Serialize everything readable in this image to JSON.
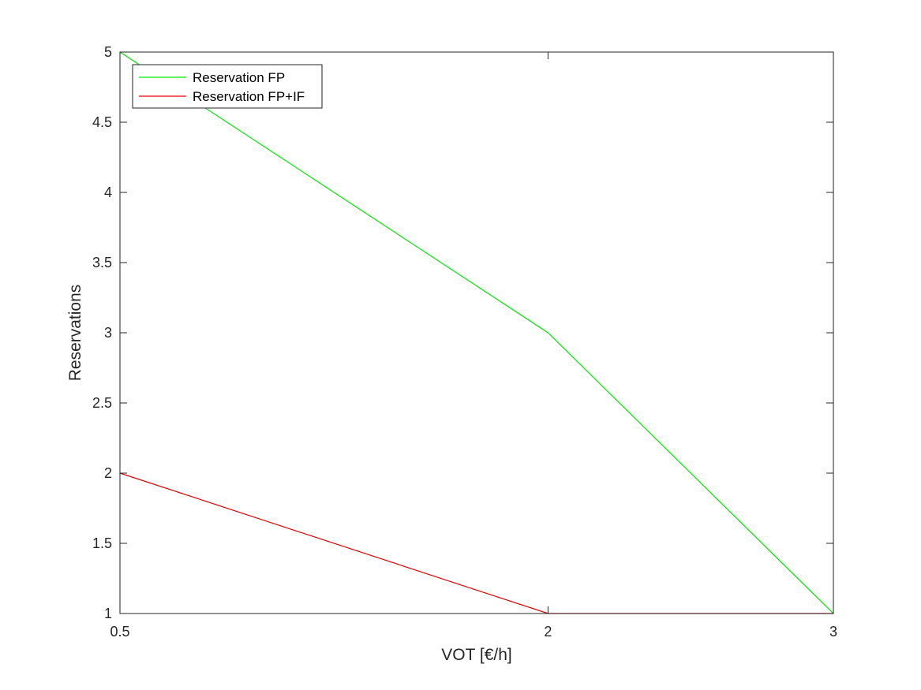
{
  "chart_data": {
    "type": "line",
    "title": "",
    "xlabel": "VOT [€/h]",
    "ylabel": "Reservations",
    "xlim": [
      0.5,
      3
    ],
    "ylim": [
      1,
      5
    ],
    "x_ticks": [
      0.5,
      2,
      3
    ],
    "x_tick_labels": [
      "0.5",
      "2",
      "3"
    ],
    "y_ticks": [
      1,
      1.5,
      2,
      2.5,
      3,
      3.5,
      4,
      4.5,
      5
    ],
    "y_tick_labels": [
      "1",
      "1.5",
      "2",
      "2.5",
      "3",
      "3.5",
      "4",
      "4.5",
      "5"
    ],
    "grid": false,
    "legend_position": "top-left",
    "series": [
      {
        "name": "Reservation FP",
        "color": "#00e600",
        "x": [
          0.5,
          2,
          3
        ],
        "y": [
          5,
          3,
          1
        ]
      },
      {
        "name": "Reservation FP+IF",
        "color": "#e60000",
        "x": [
          0.5,
          2,
          3
        ],
        "y": [
          2,
          1,
          1
        ]
      }
    ]
  }
}
